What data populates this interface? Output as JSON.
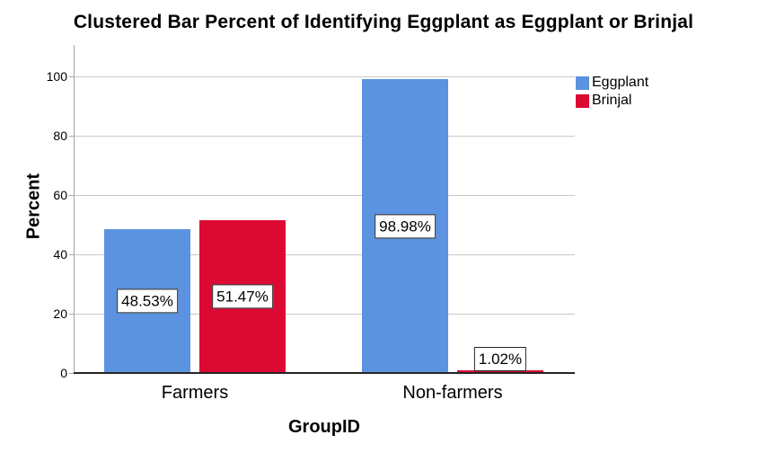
{
  "chart_data": {
    "type": "bar",
    "clustered": true,
    "title": "Clustered Bar Percent of Identifying Eggplant as Eggplant or Brinjal",
    "xlabel": "GroupID",
    "ylabel": "Percent",
    "categories": [
      "Farmers",
      "Non-farmers"
    ],
    "series": [
      {
        "name": "Eggplant",
        "color": "#5B93E0",
        "values": [
          48.53,
          98.98
        ],
        "labels": [
          "48.53%",
          "98.98%"
        ]
      },
      {
        "name": "Brinjal",
        "color": "#DC0A33",
        "values": [
          51.47,
          1.02
        ],
        "labels": [
          "51.47%",
          "1.02%"
        ]
      }
    ],
    "yticks": [
      0,
      20,
      40,
      60,
      80,
      100
    ],
    "ylim": [
      0,
      110
    ],
    "grid": "horizontal",
    "legend_position": "top-right",
    "colors": {
      "gridline": "#C9C9C9",
      "y_axis_line": "#A6A6A6",
      "x_axis_line": "#262626",
      "label_box_bg": "#FFFFFF",
      "label_box_border": "#262626",
      "background": "#FFFFFF",
      "text": "#000000"
    }
  }
}
